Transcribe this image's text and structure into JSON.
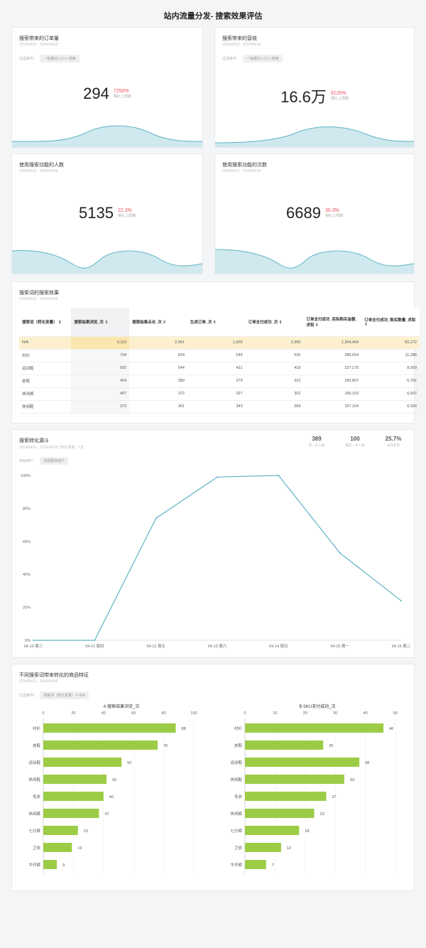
{
  "page_title": "站内流量分发- 搜索效果评估",
  "colors": {
    "accent": "#5fb3c4",
    "wave_fill": "#cfe9ee",
    "bar": "#9ccc45",
    "highlight_row": "#fdf0cf",
    "delta_red": "#e8505b"
  },
  "kpi_cards": [
    {
      "title": "搜索带来的订单量",
      "date": "2019/04/11 - 2019/04/18",
      "filter_label": "过滤条件：",
      "filter_chip": "一级模块入口 = 搜索",
      "value": "294",
      "delta": "7250%",
      "delta_note": "相比上周期"
    },
    {
      "title": "搜索带来的营收",
      "date": "2019/04/11 - 2019/04/18",
      "filter_label": "过滤条件：",
      "filter_chip": "一级模块入口 = 搜索",
      "value": "16.6万",
      "delta": "9120%",
      "delta_note": "相比上周期"
    },
    {
      "title": "使用搜索功能的人数",
      "date": "2019/04/11 - 2019/04/18",
      "value": "5135",
      "delta": "22.3%",
      "delta_note": "相比上周期"
    },
    {
      "title": "使用搜索功能的次数",
      "date": "2019/04/11 - 2019/04/18",
      "value": "6689",
      "delta": "30.3%",
      "delta_note": "相比上周期"
    }
  ],
  "table_card": {
    "title": "搜索词的搜索效果",
    "date": "2019/04/11 - 2019/04/18",
    "columns": [
      "搜索词（转化变量） ⇕",
      "搜索结果浏览_次 ⇕",
      "搜索结果点击_次 ⇕",
      "生成订单_次 ⇕",
      "订单支付成功_次 ⇕",
      "订单支付成功_实际购买金额_求和 ⇕",
      "订单支付成功_购买数量_求和 ⇕"
    ],
    "rows": [
      [
        "N/A",
        "3,113",
        "2,951",
        "1,606",
        "2,365",
        "1,304,404",
        "50,272"
      ],
      [
        "衬衫",
        "734",
        "824",
        "549",
        "526",
        "289,654",
        "11,286"
      ],
      [
        "运动鞋",
        "592",
        "544",
        "421",
        "418",
        "227,175",
        "8,669"
      ],
      [
        "皮鞋",
        "454",
        "389",
        "379",
        "322",
        "182,807",
        "6,761"
      ],
      [
        "休闲裤",
        "407",
        "372",
        "327",
        "302",
        "165,153",
        "6,507"
      ],
      [
        "休闲鞋",
        "373",
        "361",
        "343",
        "284",
        "157,104",
        "6,026"
      ]
    ]
  },
  "funnel_card": {
    "title": "搜索转化漏斗",
    "date": "2019/04/11 - 2019/04/18 | 转化周期：7天",
    "filter_label": "目标用户：",
    "filter_chip": "全部整体用户",
    "stats": [
      {
        "value": "389",
        "label": "第一步人数"
      },
      {
        "value": "100",
        "label": "最后一步人数"
      },
      {
        "value": "25.7%",
        "label": "总转化率"
      }
    ]
  },
  "bars_card": {
    "title": "不同搜索词带来转化的商品特征",
    "date": "2019/04/11 - 2019/04/18",
    "filter_label": "过滤条件：",
    "filter_chip": "搜索词（转化变量）!= N/A"
  },
  "chart_data": [
    {
      "type": "line",
      "x": [
        "04-10 周三",
        "04-11 周四",
        "04-12 周五",
        "04-13 周六",
        "04-14 周日",
        "04-15 周一",
        "04-16 周二"
      ],
      "y": [
        0,
        0,
        74,
        99,
        100,
        53,
        24
      ],
      "y_ticks": [
        "0%",
        "20%",
        "40%",
        "60%",
        "80%",
        "100%"
      ],
      "ylim": [
        0,
        100
      ],
      "grid": false
    },
    {
      "type": "bar",
      "orientation": "horizontal",
      "title": "A 搜索结果浏览_次",
      "categories": [
        "衬衫",
        "皮鞋",
        "运动鞋",
        "休闲鞋",
        "毛衣",
        "休闲裤",
        "七分裤",
        "卫衣",
        "牛仔裤"
      ],
      "values": [
        88,
        76,
        52,
        42,
        40,
        37,
        23,
        19,
        9
      ],
      "x_ticks": [
        "0",
        "20",
        "40",
        "60",
        "80",
        "100"
      ],
      "xlim": [
        0,
        100
      ]
    },
    {
      "type": "bar",
      "orientation": "horizontal",
      "title": "B SKU支付成功_次",
      "categories": [
        "衬衫",
        "皮鞋",
        "运动鞋",
        "休闲鞋",
        "毛衣",
        "休闲裤",
        "七分裤",
        "卫衣",
        "牛仔裤"
      ],
      "values": [
        46,
        26,
        38,
        33,
        27,
        23,
        18,
        12,
        7
      ],
      "x_ticks": [
        "0",
        "10",
        "20",
        "30",
        "40",
        "50"
      ],
      "xlim": [
        0,
        50
      ]
    }
  ]
}
